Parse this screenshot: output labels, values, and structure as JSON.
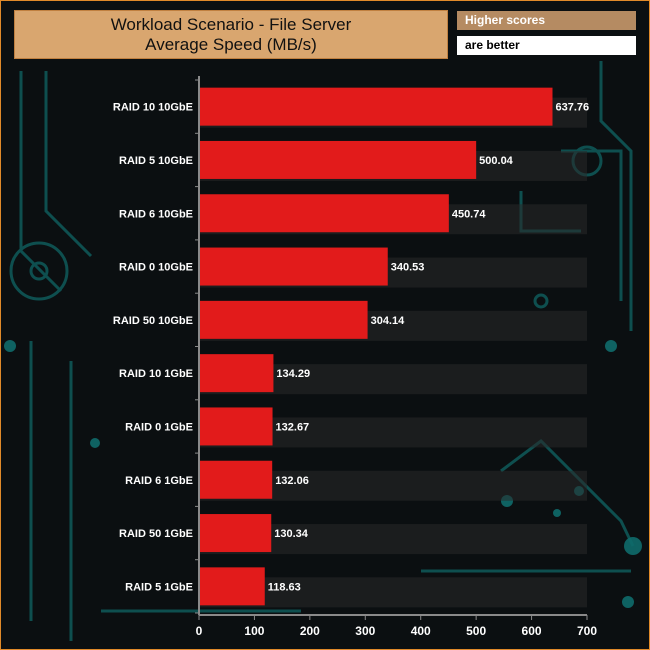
{
  "header": {
    "title_line1": "Workload Scenario - File Server",
    "title_line2": "Average Speed (MB/s)",
    "badge_top": "Higher scores",
    "badge_bottom": "are better"
  },
  "colors": {
    "bar": "#e21b1b",
    "title_bg": "#d9a66f",
    "badge_top_bg": "#b58b62",
    "band": "#2a2a2a",
    "circuit": "#0f5f5f"
  },
  "chart_data": {
    "type": "bar",
    "orientation": "horizontal",
    "title": "Workload Scenario - File Server",
    "subtitle": "Average Speed (MB/s)",
    "categories": [
      "RAID 10 10GbE",
      "RAID 5 10GbE",
      "RAID 6 10GbE",
      "RAID 0 10GbE",
      "RAID 50 10GbE",
      "RAID 10 1GbE",
      "RAID 0 1GbE",
      "RAID 6 1GbE",
      "RAID 50 1GbE",
      "RAID 5 1GbE"
    ],
    "values": [
      637.76,
      500.04,
      450.74,
      340.53,
      304.14,
      134.29,
      132.67,
      132.06,
      130.34,
      118.63
    ],
    "value_labels": [
      "637.76",
      "500.04",
      "450.74",
      "340.53",
      "304.14",
      "134.29",
      "132.67",
      "132.06",
      "130.34",
      "118.63"
    ],
    "xlim": [
      0,
      700
    ],
    "xticks": [
      0,
      100,
      200,
      300,
      400,
      500,
      600,
      700
    ],
    "grid": false,
    "legend": "none"
  }
}
